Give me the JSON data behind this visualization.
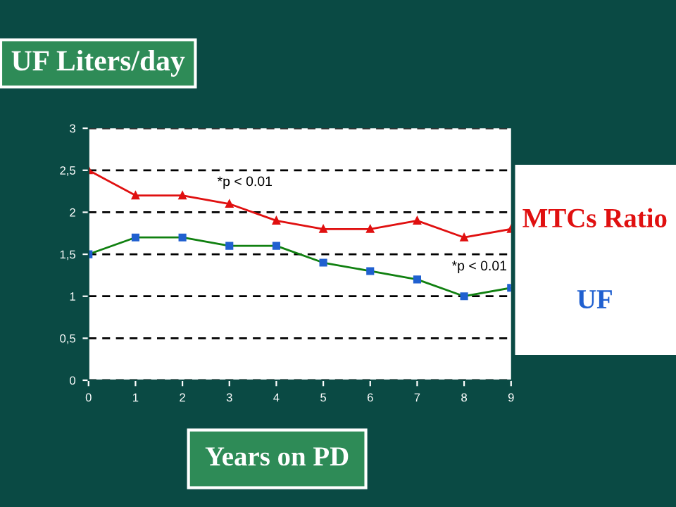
{
  "chart_data": {
    "type": "line",
    "title": "UF Liters/day",
    "xlabel": "Years on PD",
    "x": [
      0,
      1,
      2,
      3,
      4,
      5,
      6,
      7,
      8,
      9
    ],
    "series": [
      {
        "name": "MTCs Ratio",
        "color": "#e01010",
        "marker": "triangle",
        "values": [
          2.5,
          2.2,
          2.2,
          2.1,
          1.9,
          1.8,
          1.8,
          1.9,
          1.7,
          1.8
        ]
      },
      {
        "name": "UF",
        "color": "#2060d0",
        "marker": "square",
        "values": [
          1.5,
          1.7,
          1.7,
          1.6,
          1.6,
          1.4,
          1.3,
          1.2,
          1.0,
          1.1
        ]
      }
    ],
    "xlim": [
      0,
      9
    ],
    "xticks": [
      0,
      1,
      2,
      3,
      4,
      5,
      6,
      7,
      8,
      9
    ],
    "ylim": [
      0,
      3
    ],
    "yticks": [
      0,
      {
        "value": 0.5,
        "label": "0,5"
      },
      1,
      {
        "value": 1.5,
        "label": "1,5"
      },
      2,
      {
        "value": 2.5,
        "label": "2,5"
      },
      3
    ],
    "grid": "y",
    "line_style": "solid",
    "legend": "right",
    "annotations": [
      "*p < 0.01",
      "*p < 0.01"
    ]
  }
}
